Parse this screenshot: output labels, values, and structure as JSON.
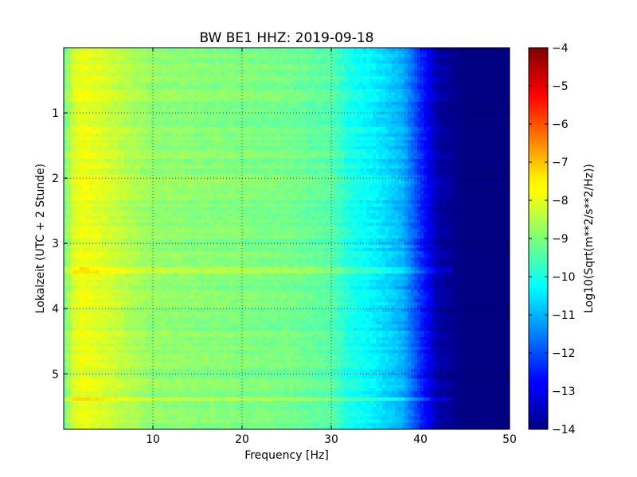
{
  "chart_data": {
    "type": "heatmap",
    "title": "BW BE1 HHZ: 2019-09-18",
    "xlabel": "Frequency [Hz]",
    "ylabel": "Lokalzeit (UTC + 2 Stunde)",
    "colorbar_label": "Log10(Sqrt(m**2/s**2/Hz))",
    "xlim": [
      0,
      50
    ],
    "ylim": [
      5.85,
      0
    ],
    "x_ticks": [
      10,
      20,
      30,
      40,
      50
    ],
    "y_ticks": [
      1,
      2,
      3,
      4,
      5
    ],
    "clim": [
      -14,
      -4
    ],
    "colorbar_ticks": [
      -4,
      -5,
      -6,
      -7,
      -8,
      -9,
      -10,
      -11,
      -12,
      -13,
      -14
    ],
    "colormap": "jet",
    "grid": true,
    "frequency_profile_hz": [
      0,
      1,
      2,
      5,
      8,
      10,
      15,
      20,
      25,
      30,
      32,
      35,
      38,
      40,
      42,
      45,
      50
    ],
    "frequency_profile_log10": [
      -9.2,
      -8.2,
      -7.9,
      -8.2,
      -8.6,
      -8.8,
      -8.9,
      -9.0,
      -9.1,
      -9.4,
      -10.0,
      -10.4,
      -11.0,
      -12.3,
      -13.6,
      -14.0,
      -14.0
    ],
    "bright_lines_time": [
      3.4,
      5.38
    ]
  }
}
